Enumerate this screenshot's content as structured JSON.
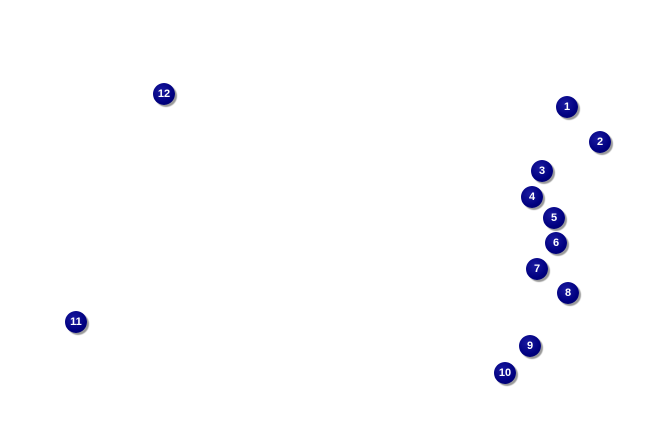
{
  "marker_color": "#000080",
  "markers": [
    {
      "label": "1"
    },
    {
      "label": "2"
    },
    {
      "label": "3"
    },
    {
      "label": "4"
    },
    {
      "label": "5"
    },
    {
      "label": "6"
    },
    {
      "label": "7"
    },
    {
      "label": "8"
    },
    {
      "label": "9"
    },
    {
      "label": "10"
    },
    {
      "label": "11"
    },
    {
      "label": "12"
    }
  ]
}
